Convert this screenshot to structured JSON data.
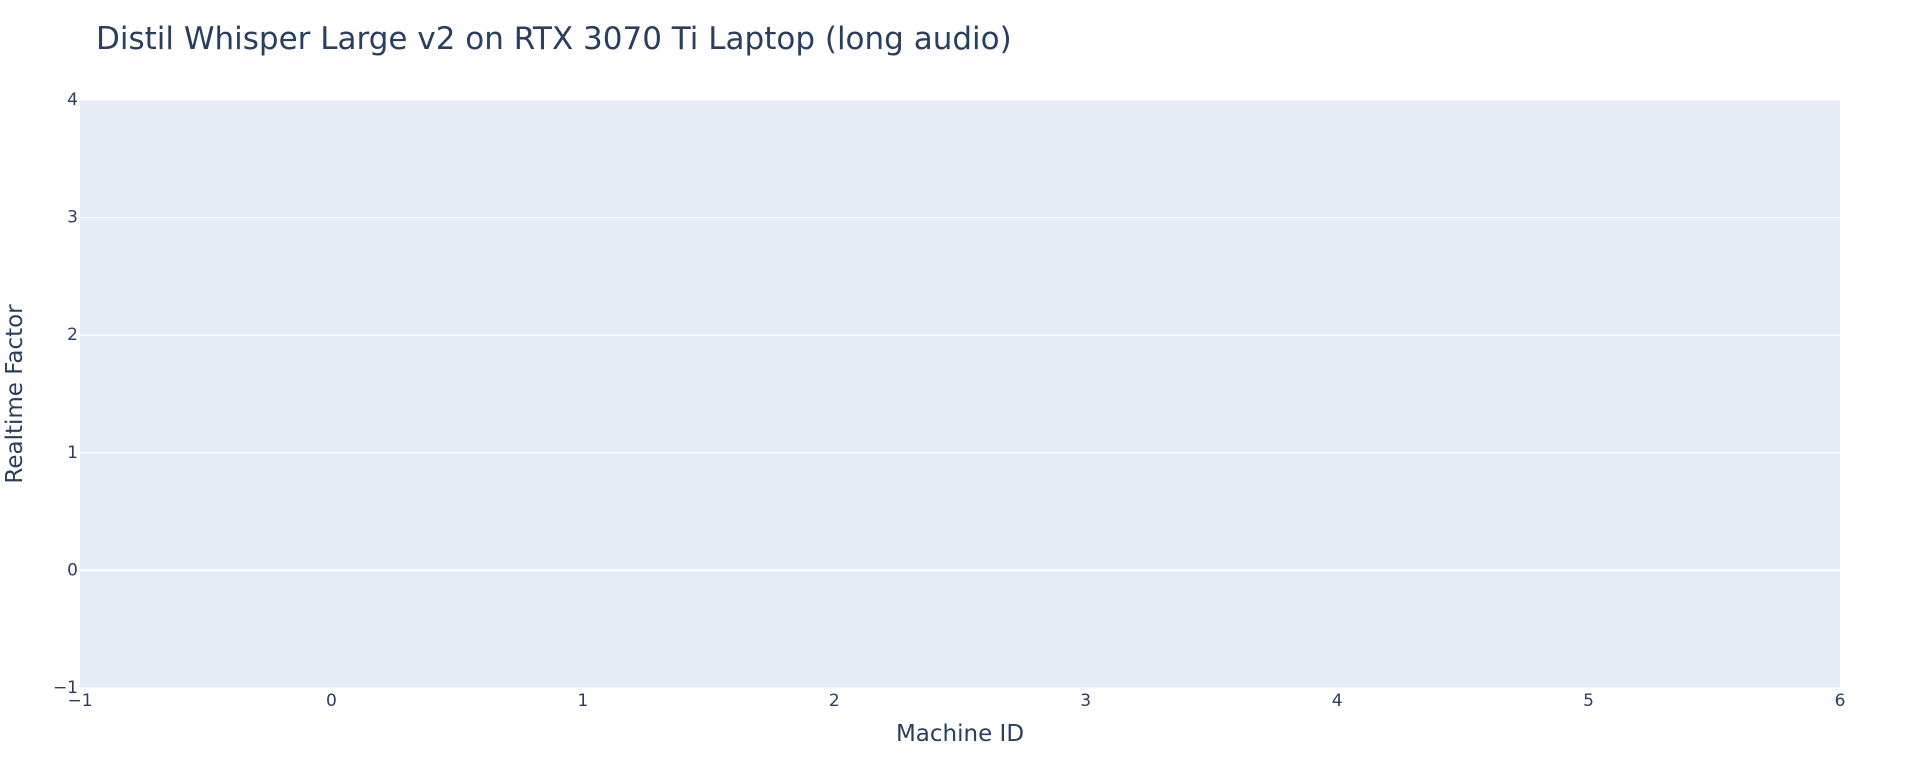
{
  "chart_data": {
    "type": "scatter",
    "title": "Distil Whisper Large v2 on RTX 3070 Ti Laptop (long audio)",
    "xlabel": "Machine ID",
    "ylabel": "Realtime Factor",
    "xlim": [
      -1,
      6
    ],
    "ylim": [
      -1,
      4
    ],
    "x_ticks": [
      -1,
      0,
      1,
      2,
      3,
      4,
      5,
      6
    ],
    "y_ticks": [
      -1,
      0,
      1,
      2,
      3,
      4
    ],
    "x_tick_labels": [
      "−1",
      "0",
      "1",
      "2",
      "3",
      "4",
      "5",
      "6"
    ],
    "y_tick_labels": [
      "−1",
      "0",
      "1",
      "2",
      "3",
      "4"
    ],
    "grid": true,
    "legend": "none",
    "series": [],
    "colors": {
      "plot_background": "#e5ecf6",
      "grid": "#ffffff",
      "zero_line": "#ffffff",
      "text": "#2a3f5f",
      "page_background": "#ffffff"
    }
  }
}
